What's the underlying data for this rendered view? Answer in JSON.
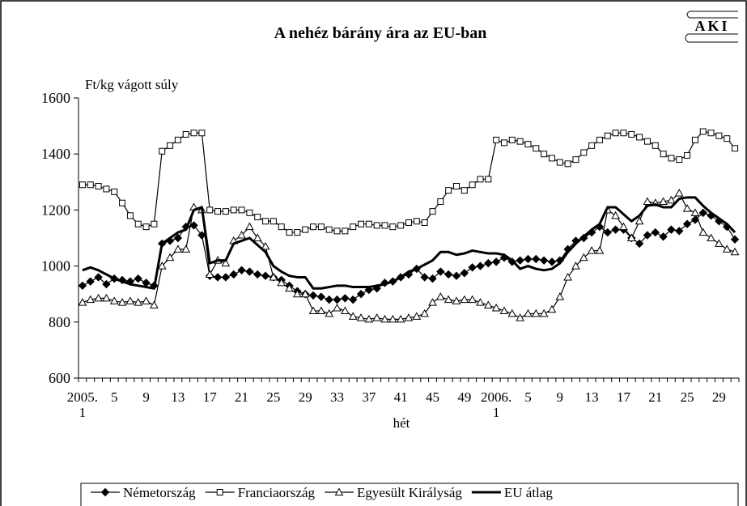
{
  "logo": "AKI",
  "chart_data": {
    "type": "line",
    "title": "A nehéz bárány ára az EU-ban",
    "y_label": "Ft/kg vágott súly",
    "x_label": "hét",
    "categories": [
      "2005. 1",
      null,
      null,
      null,
      "5",
      null,
      null,
      null,
      "9",
      null,
      null,
      null,
      "13",
      null,
      null,
      null,
      "17",
      null,
      null,
      null,
      "21",
      null,
      null,
      null,
      "25",
      null,
      null,
      null,
      "29",
      null,
      null,
      null,
      "33",
      null,
      null,
      null,
      "37",
      null,
      null,
      null,
      "41",
      null,
      null,
      null,
      "45",
      null,
      null,
      null,
      "49",
      null,
      null,
      null,
      "2006. 1",
      null,
      null,
      null,
      "5",
      null,
      null,
      null,
      "9",
      null,
      null,
      null,
      "13",
      null,
      null,
      null,
      "17",
      null,
      null,
      null,
      "21",
      null,
      null,
      null,
      "25",
      null,
      null,
      null,
      "29",
      null,
      null
    ],
    "ylim": [
      600,
      1600
    ],
    "yticks": [
      600,
      800,
      1000,
      1200,
      1400,
      1600
    ],
    "legend": "bottom",
    "series": [
      {
        "name": "Németország",
        "color": "#000000",
        "marker": "diamond",
        "values": [
          930,
          945,
          960,
          935,
          955,
          950,
          945,
          955,
          940,
          930,
          1080,
          1090,
          1100,
          1140,
          1145,
          1110,
          965,
          960,
          960,
          970,
          985,
          980,
          970,
          965,
          960,
          950,
          930,
          910,
          900,
          895,
          890,
          880,
          880,
          885,
          880,
          900,
          915,
          920,
          940,
          945,
          960,
          970,
          990,
          960,
          955,
          980,
          970,
          965,
          975,
          995,
          1000,
          1010,
          1015,
          1030,
          1015,
          1020,
          1025,
          1025,
          1020,
          1015,
          1020,
          1060,
          1090,
          1100,
          1120,
          1140,
          1120,
          1130,
          1130,
          1100,
          1080,
          1110,
          1120,
          1105,
          1130,
          1125,
          1150,
          1165,
          1190,
          1180,
          1160,
          1140,
          1095
        ]
      },
      {
        "name": "Franciaország",
        "color": "#000000",
        "marker": "square",
        "values": [
          1290,
          1290,
          1285,
          1275,
          1265,
          1225,
          1180,
          1150,
          1140,
          1150,
          1410,
          1430,
          1450,
          1470,
          1475,
          1475,
          1200,
          1195,
          1195,
          1200,
          1200,
          1190,
          1175,
          1160,
          1160,
          1140,
          1120,
          1120,
          1130,
          1140,
          1140,
          1130,
          1125,
          1125,
          1140,
          1150,
          1150,
          1145,
          1145,
          1140,
          1145,
          1155,
          1160,
          1155,
          1195,
          1230,
          1270,
          1285,
          1270,
          1290,
          1310,
          1310,
          1450,
          1440,
          1450,
          1445,
          1435,
          1420,
          1400,
          1385,
          1370,
          1365,
          1380,
          1405,
          1430,
          1450,
          1465,
          1475,
          1475,
          1470,
          1460,
          1445,
          1430,
          1400,
          1385,
          1380,
          1395,
          1450,
          1480,
          1475,
          1465,
          1455,
          1420
        ]
      },
      {
        "name": "Egyesült Királyság",
        "color": "#000000",
        "marker": "triangle",
        "values": [
          870,
          880,
          885,
          885,
          875,
          870,
          875,
          870,
          875,
          860,
          1000,
          1030,
          1060,
          1060,
          1210,
          1200,
          970,
          1020,
          1010,
          1090,
          1110,
          1140,
          1100,
          1070,
          960,
          940,
          920,
          900,
          900,
          840,
          840,
          830,
          850,
          840,
          820,
          815,
          810,
          815,
          810,
          810,
          810,
          815,
          820,
          830,
          870,
          890,
          880,
          875,
          880,
          880,
          870,
          860,
          850,
          840,
          830,
          815,
          830,
          830,
          830,
          845,
          890,
          960,
          1000,
          1030,
          1055,
          1055,
          1200,
          1180,
          1140,
          1100,
          1160,
          1230,
          1225,
          1230,
          1235,
          1260,
          1205,
          1190,
          1120,
          1100,
          1080,
          1060,
          1050
        ]
      },
      {
        "name": "EU átlag",
        "color": "#000000",
        "marker": "none",
        "line_width": 3,
        "values": [
          985,
          995,
          985,
          970,
          955,
          945,
          935,
          930,
          925,
          920,
          1080,
          1100,
          1120,
          1130,
          1200,
          1210,
          1010,
          1020,
          1020,
          1080,
          1090,
          1100,
          1075,
          1050,
          1000,
          980,
          965,
          960,
          960,
          920,
          920,
          925,
          930,
          930,
          925,
          925,
          925,
          930,
          935,
          945,
          960,
          980,
          990,
          1005,
          1020,
          1050,
          1050,
          1040,
          1045,
          1055,
          1050,
          1045,
          1045,
          1040,
          1020,
          990,
          1000,
          990,
          985,
          990,
          1010,
          1050,
          1080,
          1105,
          1130,
          1150,
          1210,
          1210,
          1185,
          1160,
          1180,
          1215,
          1220,
          1210,
          1210,
          1240,
          1245,
          1245,
          1215,
          1190,
          1170,
          1150,
          1120
        ]
      }
    ]
  }
}
